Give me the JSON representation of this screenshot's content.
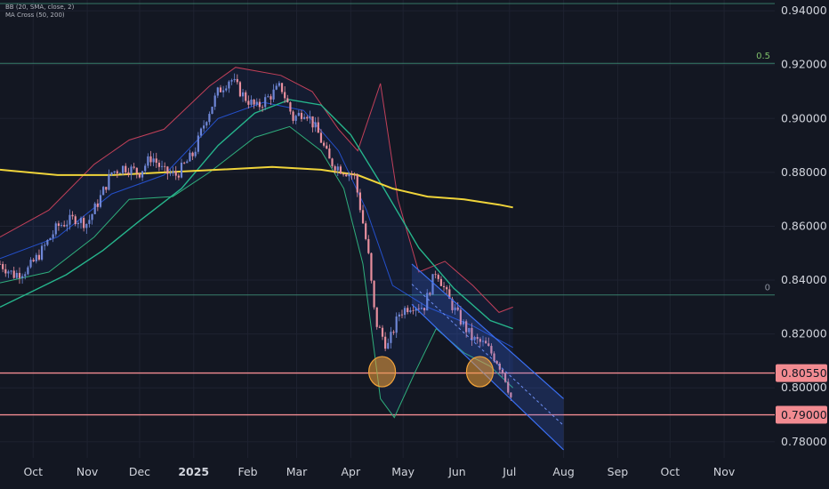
{
  "colors": {
    "background": "#131722",
    "grid": "#1e2230",
    "candle_up": "#6e86d6",
    "candle_down": "#e88f9e",
    "bb_upper": "#c2405a",
    "bb_lower": "#2fae7c",
    "bb_basis": "#2962ff",
    "ma_fast": "#26b58c",
    "ma_slow": "#f0d43a",
    "fib_line": "#3f8f78",
    "level_line": "#f28b91",
    "channel": "#3a6ff2",
    "circle": "#f2a33a",
    "axis_text": "#d1d4dc"
  },
  "indicators": [
    "BB (20, SMA, close, 2)",
    "MA Cross (50, 200)"
  ],
  "fib_labels": [
    "0.5",
    "0"
  ],
  "price_badges": [
    "0.80550",
    "0.79000"
  ],
  "chart_data": {
    "type": "candlestick",
    "instrument_pair": "",
    "y_ticks": [
      "0.94000",
      "0.92000",
      "0.90000",
      "0.88000",
      "0.86000",
      "0.84000",
      "0.82000",
      "0.80000",
      "0.78000"
    ],
    "ylim": [
      0.774,
      0.944
    ],
    "x_ticks": [
      "Oct",
      "Nov",
      "Dec",
      "2025",
      "Feb",
      "Mar",
      "Apr",
      "May",
      "Jun",
      "Jul",
      "Aug",
      "Sep",
      "Oct",
      "Nov"
    ],
    "x_tick_dates": [
      "2024-10-01",
      "2024-11-01",
      "2024-12-01",
      "2025-01-01",
      "2025-02-01",
      "2025-03-01",
      "2025-04-01",
      "2025-05-01",
      "2025-06-01",
      "2025-07-01",
      "2025-08-01",
      "2025-09-01",
      "2025-10-01",
      "2025-11-01"
    ],
    "xlim": [
      "2024-09-12",
      "2025-11-30"
    ],
    "horizontal_levels": [
      {
        "label": "0.5",
        "price": 0.9205,
        "kind": "fibonacci"
      },
      {
        "label": "0",
        "price": 0.8345,
        "kind": "fibonacci"
      },
      {
        "label": "0.80550",
        "price": 0.8055,
        "kind": "support"
      },
      {
        "label": "0.79000",
        "price": 0.79,
        "kind": "support"
      }
    ],
    "price_path": [
      [
        "2024-09-12",
        0.846
      ],
      [
        "2024-09-20",
        0.842
      ],
      [
        "2024-09-28",
        0.844
      ],
      [
        "2024-10-05",
        0.85
      ],
      [
        "2024-10-15",
        0.86
      ],
      [
        "2024-10-25",
        0.863
      ],
      [
        "2024-11-01",
        0.861
      ],
      [
        "2024-11-08",
        0.87
      ],
      [
        "2024-11-15",
        0.88
      ],
      [
        "2024-11-22",
        0.882
      ],
      [
        "2024-12-01",
        0.88
      ],
      [
        "2024-12-08",
        0.886
      ],
      [
        "2024-12-15",
        0.88
      ],
      [
        "2024-12-22",
        0.879
      ],
      [
        "2025-01-01",
        0.887
      ],
      [
        "2025-01-08",
        0.9
      ],
      [
        "2025-01-15",
        0.91
      ],
      [
        "2025-01-22",
        0.915
      ],
      [
        "2025-01-30",
        0.908
      ],
      [
        "2025-02-06",
        0.904
      ],
      [
        "2025-02-13",
        0.908
      ],
      [
        "2025-02-20",
        0.912
      ],
      [
        "2025-02-27",
        0.9
      ],
      [
        "2025-03-06",
        0.903
      ],
      [
        "2025-03-13",
        0.895
      ],
      [
        "2025-03-20",
        0.884
      ],
      [
        "2025-03-27",
        0.881
      ],
      [
        "2025-04-03",
        0.879
      ],
      [
        "2025-04-07",
        0.865
      ],
      [
        "2025-04-11",
        0.85
      ],
      [
        "2025-04-15",
        0.825
      ],
      [
        "2025-04-22",
        0.815
      ],
      [
        "2025-04-29",
        0.828
      ],
      [
        "2025-05-06",
        0.831
      ],
      [
        "2025-05-13",
        0.83
      ],
      [
        "2025-05-20",
        0.844
      ],
      [
        "2025-05-27",
        0.833
      ],
      [
        "2025-06-03",
        0.825
      ],
      [
        "2025-06-10",
        0.818
      ],
      [
        "2025-06-17",
        0.816
      ],
      [
        "2025-06-24",
        0.81
      ],
      [
        "2025-06-28",
        0.805
      ],
      [
        "2025-07-02",
        0.796
      ]
    ],
    "bollinger": {
      "name": "BB (20, SMA, close, 2)",
      "upper": [
        [
          "2024-09-12",
          0.856
        ],
        [
          "2024-10-10",
          0.866
        ],
        [
          "2024-11-05",
          0.883
        ],
        [
          "2024-11-25",
          0.892
        ],
        [
          "2024-12-15",
          0.896
        ],
        [
          "2025-01-10",
          0.912
        ],
        [
          "2025-01-25",
          0.919
        ],
        [
          "2025-02-20",
          0.916
        ],
        [
          "2025-03-10",
          0.91
        ],
        [
          "2025-03-25",
          0.896
        ],
        [
          "2025-04-05",
          0.888
        ],
        [
          "2025-04-18",
          0.913
        ],
        [
          "2025-04-28",
          0.87
        ],
        [
          "2025-05-10",
          0.843
        ],
        [
          "2025-05-25",
          0.847
        ],
        [
          "2025-06-10",
          0.838
        ],
        [
          "2025-06-25",
          0.828
        ],
        [
          "2025-07-03",
          0.83
        ]
      ],
      "basis": [
        [
          "2024-09-12",
          0.848
        ],
        [
          "2024-10-15",
          0.856
        ],
        [
          "2024-11-15",
          0.872
        ],
        [
          "2024-12-15",
          0.879
        ],
        [
          "2025-01-15",
          0.9
        ],
        [
          "2025-02-10",
          0.906
        ],
        [
          "2025-03-05",
          0.903
        ],
        [
          "2025-03-25",
          0.888
        ],
        [
          "2025-04-10",
          0.866
        ],
        [
          "2025-04-25",
          0.838
        ],
        [
          "2025-05-15",
          0.83
        ],
        [
          "2025-06-10",
          0.823
        ],
        [
          "2025-07-03",
          0.815
        ]
      ],
      "lower": [
        [
          "2024-09-12",
          0.839
        ],
        [
          "2024-10-10",
          0.843
        ],
        [
          "2024-11-05",
          0.856
        ],
        [
          "2024-11-25",
          0.87
        ],
        [
          "2024-12-20",
          0.871
        ],
        [
          "2025-01-10",
          0.88
        ],
        [
          "2025-02-05",
          0.893
        ],
        [
          "2025-02-25",
          0.897
        ],
        [
          "2025-03-15",
          0.888
        ],
        [
          "2025-03-28",
          0.874
        ],
        [
          "2025-04-08",
          0.846
        ],
        [
          "2025-04-18",
          0.796
        ],
        [
          "2025-04-26",
          0.789
        ],
        [
          "2025-05-08",
          0.806
        ],
        [
          "2025-05-20",
          0.822
        ],
        [
          "2025-06-05",
          0.813
        ],
        [
          "2025-06-20",
          0.808
        ],
        [
          "2025-07-03",
          0.8
        ]
      ]
    },
    "moving_averages": [
      {
        "name": "MA 50",
        "points": [
          [
            "2024-09-12",
            0.83
          ],
          [
            "2024-10-01",
            0.836
          ],
          [
            "2024-10-20",
            0.842
          ],
          [
            "2024-11-10",
            0.851
          ],
          [
            "2024-12-01",
            0.862
          ],
          [
            "2024-12-25",
            0.874
          ],
          [
            "2025-01-15",
            0.89
          ],
          [
            "2025-02-05",
            0.902
          ],
          [
            "2025-02-25",
            0.907
          ],
          [
            "2025-03-15",
            0.905
          ],
          [
            "2025-04-01",
            0.894
          ],
          [
            "2025-04-20",
            0.874
          ],
          [
            "2025-05-10",
            0.852
          ],
          [
            "2025-05-30",
            0.837
          ],
          [
            "2025-06-20",
            0.825
          ],
          [
            "2025-07-03",
            0.822
          ]
        ]
      },
      {
        "name": "MA 200",
        "points": [
          [
            "2024-09-12",
            0.881
          ],
          [
            "2024-10-15",
            0.879
          ],
          [
            "2024-11-15",
            0.879
          ],
          [
            "2024-12-15",
            0.88
          ],
          [
            "2025-01-15",
            0.881
          ],
          [
            "2025-02-15",
            0.882
          ],
          [
            "2025-03-15",
            0.881
          ],
          [
            "2025-04-05",
            0.879
          ],
          [
            "2025-04-25",
            0.874
          ],
          [
            "2025-05-15",
            0.871
          ],
          [
            "2025-06-05",
            0.87
          ],
          [
            "2025-06-25",
            0.868
          ],
          [
            "2025-07-03",
            0.867
          ]
        ]
      }
    ],
    "channel": {
      "upper": [
        [
          "2025-05-06",
          0.846
        ],
        [
          "2025-08-01",
          0.796
        ]
      ],
      "lower": [
        [
          "2025-05-06",
          0.831
        ],
        [
          "2025-08-01",
          0.777
        ]
      ],
      "mid_dashed": [
        [
          "2025-05-06",
          0.8385
        ],
        [
          "2025-08-01",
          0.786
        ]
      ]
    },
    "highlights": [
      {
        "date": "2025-04-19",
        "price": 0.806
      },
      {
        "date": "2025-06-14",
        "price": 0.806
      }
    ]
  }
}
